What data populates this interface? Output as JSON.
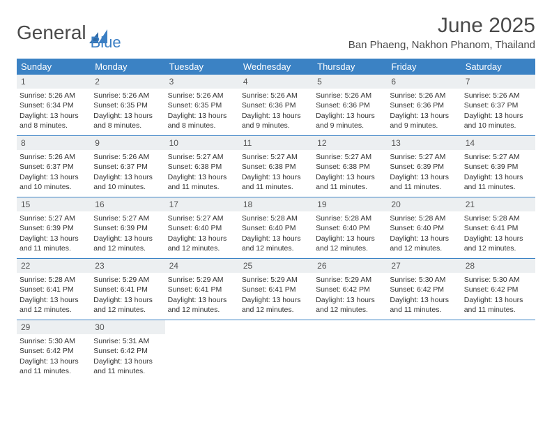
{
  "logo": {
    "text1": "General",
    "text2": "Blue"
  },
  "title": "June 2025",
  "location": "Ban Phaeng, Nakhon Phanom, Thailand",
  "colors": {
    "header_bg": "#3b82c4",
    "header_text": "#ffffff",
    "daynum_bg": "#eceff1",
    "week_border": "#3b82c4",
    "logo_blue": "#3b7fc4"
  },
  "weekdays": [
    "Sunday",
    "Monday",
    "Tuesday",
    "Wednesday",
    "Thursday",
    "Friday",
    "Saturday"
  ],
  "weeks": [
    [
      {
        "n": "1",
        "sunrise": "5:26 AM",
        "sunset": "6:34 PM",
        "dh": "13",
        "dm": "8"
      },
      {
        "n": "2",
        "sunrise": "5:26 AM",
        "sunset": "6:35 PM",
        "dh": "13",
        "dm": "8"
      },
      {
        "n": "3",
        "sunrise": "5:26 AM",
        "sunset": "6:35 PM",
        "dh": "13",
        "dm": "8"
      },
      {
        "n": "4",
        "sunrise": "5:26 AM",
        "sunset": "6:36 PM",
        "dh": "13",
        "dm": "9"
      },
      {
        "n": "5",
        "sunrise": "5:26 AM",
        "sunset": "6:36 PM",
        "dh": "13",
        "dm": "9"
      },
      {
        "n": "6",
        "sunrise": "5:26 AM",
        "sunset": "6:36 PM",
        "dh": "13",
        "dm": "9"
      },
      {
        "n": "7",
        "sunrise": "5:26 AM",
        "sunset": "6:37 PM",
        "dh": "13",
        "dm": "10"
      }
    ],
    [
      {
        "n": "8",
        "sunrise": "5:26 AM",
        "sunset": "6:37 PM",
        "dh": "13",
        "dm": "10"
      },
      {
        "n": "9",
        "sunrise": "5:26 AM",
        "sunset": "6:37 PM",
        "dh": "13",
        "dm": "10"
      },
      {
        "n": "10",
        "sunrise": "5:27 AM",
        "sunset": "6:38 PM",
        "dh": "13",
        "dm": "11"
      },
      {
        "n": "11",
        "sunrise": "5:27 AM",
        "sunset": "6:38 PM",
        "dh": "13",
        "dm": "11"
      },
      {
        "n": "12",
        "sunrise": "5:27 AM",
        "sunset": "6:38 PM",
        "dh": "13",
        "dm": "11"
      },
      {
        "n": "13",
        "sunrise": "5:27 AM",
        "sunset": "6:39 PM",
        "dh": "13",
        "dm": "11"
      },
      {
        "n": "14",
        "sunrise": "5:27 AM",
        "sunset": "6:39 PM",
        "dh": "13",
        "dm": "11"
      }
    ],
    [
      {
        "n": "15",
        "sunrise": "5:27 AM",
        "sunset": "6:39 PM",
        "dh": "13",
        "dm": "11"
      },
      {
        "n": "16",
        "sunrise": "5:27 AM",
        "sunset": "6:39 PM",
        "dh": "13",
        "dm": "12"
      },
      {
        "n": "17",
        "sunrise": "5:27 AM",
        "sunset": "6:40 PM",
        "dh": "13",
        "dm": "12"
      },
      {
        "n": "18",
        "sunrise": "5:28 AM",
        "sunset": "6:40 PM",
        "dh": "13",
        "dm": "12"
      },
      {
        "n": "19",
        "sunrise": "5:28 AM",
        "sunset": "6:40 PM",
        "dh": "13",
        "dm": "12"
      },
      {
        "n": "20",
        "sunrise": "5:28 AM",
        "sunset": "6:40 PM",
        "dh": "13",
        "dm": "12"
      },
      {
        "n": "21",
        "sunrise": "5:28 AM",
        "sunset": "6:41 PM",
        "dh": "13",
        "dm": "12"
      }
    ],
    [
      {
        "n": "22",
        "sunrise": "5:28 AM",
        "sunset": "6:41 PM",
        "dh": "13",
        "dm": "12"
      },
      {
        "n": "23",
        "sunrise": "5:29 AM",
        "sunset": "6:41 PM",
        "dh": "13",
        "dm": "12"
      },
      {
        "n": "24",
        "sunrise": "5:29 AM",
        "sunset": "6:41 PM",
        "dh": "13",
        "dm": "12"
      },
      {
        "n": "25",
        "sunrise": "5:29 AM",
        "sunset": "6:41 PM",
        "dh": "13",
        "dm": "12"
      },
      {
        "n": "26",
        "sunrise": "5:29 AM",
        "sunset": "6:42 PM",
        "dh": "13",
        "dm": "12"
      },
      {
        "n": "27",
        "sunrise": "5:30 AM",
        "sunset": "6:42 PM",
        "dh": "13",
        "dm": "11"
      },
      {
        "n": "28",
        "sunrise": "5:30 AM",
        "sunset": "6:42 PM",
        "dh": "13",
        "dm": "11"
      }
    ],
    [
      {
        "n": "29",
        "sunrise": "5:30 AM",
        "sunset": "6:42 PM",
        "dh": "13",
        "dm": "11"
      },
      {
        "n": "30",
        "sunrise": "5:31 AM",
        "sunset": "6:42 PM",
        "dh": "13",
        "dm": "11"
      },
      null,
      null,
      null,
      null,
      null
    ]
  ]
}
